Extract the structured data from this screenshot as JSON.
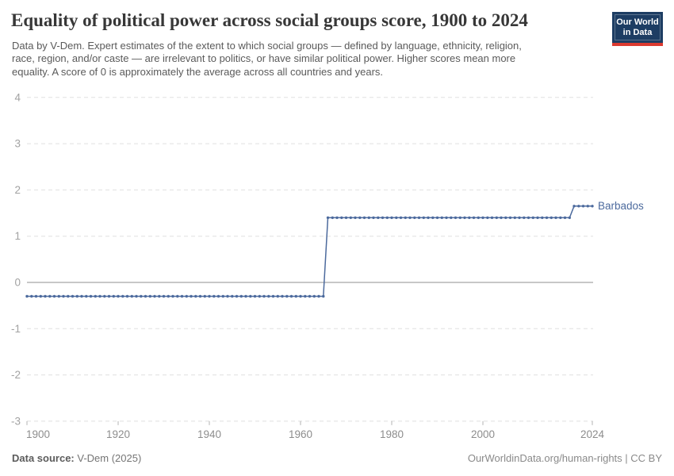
{
  "header": {
    "title": "Equality of political power across social groups score, 1900 to 2024",
    "logo": {
      "line1": "Our World",
      "line2": "in Data"
    },
    "subtitle_lines": [
      "Data by V-Dem. Expert estimates of the extent to which social groups — defined by language, ethnicity, religion,",
      "race, region, and/or caste — are irrelevant to politics, or have similar political power. Higher scores mean more",
      "equality. A score of 0 is approximately the average across all countries and years."
    ]
  },
  "chart_data": {
    "type": "line",
    "title": "Equality of political power across social groups score, 1900 to 2024",
    "entity": "Barbados",
    "x_range": [
      1900,
      2024
    ],
    "y_range": [
      -3,
      4
    ],
    "x_label_ticks": [
      1900,
      1920,
      1940,
      1960,
      1980,
      2000,
      2024
    ],
    "y_ticks": [
      4,
      3,
      2,
      1,
      0,
      -1,
      -2,
      -3
    ],
    "grid": "horizontal-dashed",
    "zero_line": "solid",
    "legend_position": "line-end-label",
    "marker": "dot-every-year",
    "series": [
      {
        "name": "Barbados",
        "color": "#4c6a9d",
        "steps": [
          {
            "start_year": 1900,
            "end_year": 1965,
            "value": -0.3
          },
          {
            "start_year": 1966,
            "end_year": 2019,
            "value": 1.4
          },
          {
            "start_year": 2020,
            "end_year": 2024,
            "value": 1.65
          }
        ]
      }
    ]
  },
  "footer": {
    "source_label": "Data source:",
    "source_value": " V-Dem (2025)",
    "credit": "OurWorldinData.org/human-rights | CC BY"
  },
  "colors": {
    "line": "#4c6a9d",
    "grid": "#e0e0e0",
    "zero_line": "#8f8f8f",
    "y_tick_text": "#a2a2a2",
    "x_tick_text": "#8d8d8d",
    "logo_bg": "#1d3d63",
    "logo_stripe": "#dc3a30"
  }
}
